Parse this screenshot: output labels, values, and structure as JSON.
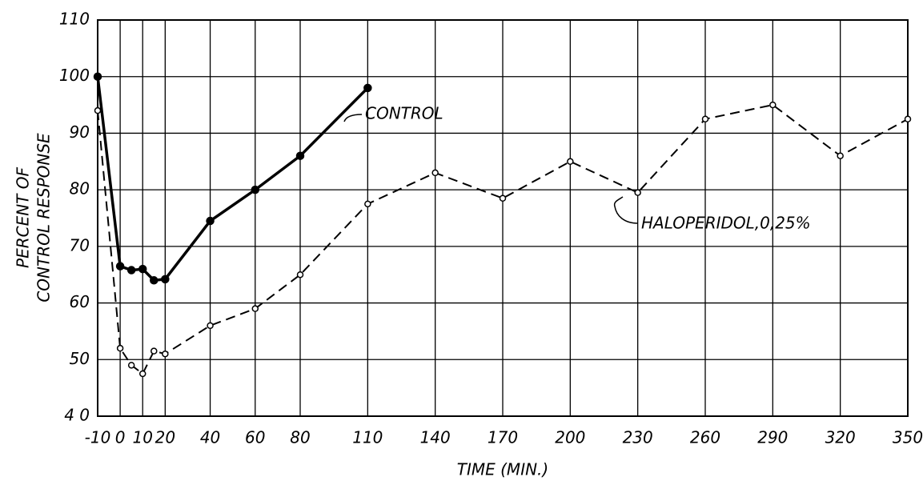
{
  "chart_data": {
    "type": "line",
    "x_label": "TIME (MIN.)",
    "y_label": [
      "PERCENT OF",
      "CONTROL RESPONSE"
    ],
    "xlim": [
      -10,
      350
    ],
    "xticks": [
      -10,
      0,
      10,
      20,
      40,
      60,
      80,
      110,
      140,
      170,
      200,
      230,
      260,
      290,
      320,
      350
    ],
    "ylim": [
      40,
      110
    ],
    "yticks": [
      {
        "value": 40,
        "label": "4 0"
      },
      50,
      60,
      70,
      80,
      90,
      100,
      110
    ],
    "grid": true,
    "series": [
      {
        "name": "CONTROL",
        "color": "#000000",
        "dashed": false,
        "marker": "filled",
        "x": [
          -10,
          0,
          5,
          10,
          15,
          20,
          40,
          60,
          80,
          110
        ],
        "values": [
          100,
          66.5,
          65.8,
          66,
          64,
          64.2,
          74.5,
          80,
          86,
          98
        ]
      },
      {
        "name": "HALOPERIDOL,0,25%",
        "color": "#000000",
        "dashed": true,
        "marker": "open",
        "x": [
          -10,
          0,
          5,
          10,
          15,
          20,
          40,
          60,
          80,
          110,
          140,
          170,
          200,
          230,
          260,
          290,
          320,
          350
        ],
        "values": [
          94,
          52,
          49,
          47.5,
          51.5,
          51,
          56,
          59,
          65,
          77.5,
          83,
          78.5,
          85,
          79.5,
          92.5,
          95,
          86,
          92.5
        ]
      }
    ]
  }
}
